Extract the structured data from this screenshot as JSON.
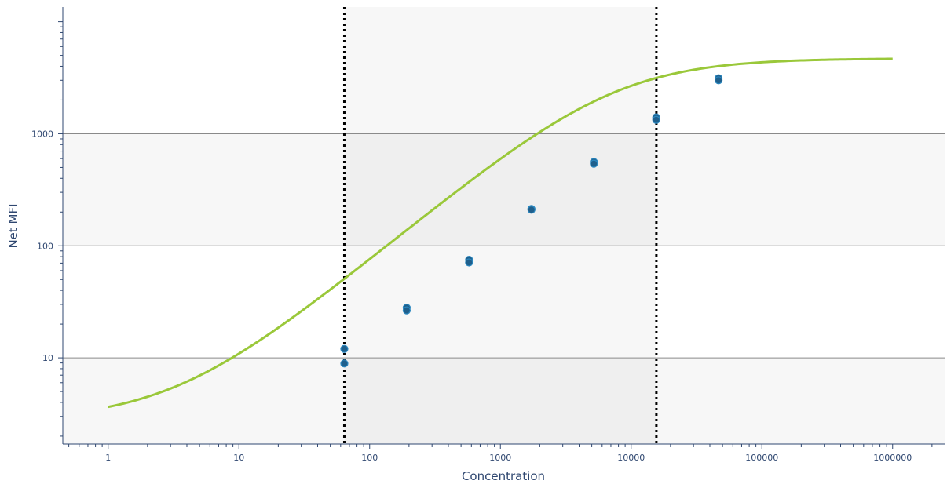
{
  "chart_data": {
    "type": "scatter",
    "xlabel": "Concentration",
    "ylabel": "Net MFI",
    "x_scale": "log",
    "y_scale": "log",
    "xlim": [
      0.45,
      2500000
    ],
    "ylim": [
      1.7,
      13500
    ],
    "x_ticks": [
      1,
      10,
      100,
      1000,
      10000,
      100000,
      1000000
    ],
    "x_tick_labels": [
      "1",
      "10",
      "100",
      "1000",
      "10000",
      "100000",
      "1000000"
    ],
    "y_ticks": [
      10,
      100,
      1000
    ],
    "y_tick_labels": [
      "10",
      "100",
      "1000"
    ],
    "grid": "horizontal at major y ticks",
    "alternating_bands": true,
    "range_limits": {
      "lower": 64,
      "upper": 15600,
      "style": "dotted vertical lines, shaded region between"
    },
    "series": [
      {
        "kind": "points",
        "color": "#1f5f8c",
        "points": [
          {
            "x": 64,
            "y": 12.0
          },
          {
            "x": 64,
            "y": 8.9
          },
          {
            "x": 192,
            "y": 28.0
          },
          {
            "x": 192,
            "y": 26.5
          },
          {
            "x": 576,
            "y": 75
          },
          {
            "x": 576,
            "y": 71
          },
          {
            "x": 1728,
            "y": 213
          },
          {
            "x": 1728,
            "y": 210
          },
          {
            "x": 5184,
            "y": 560
          },
          {
            "x": 5184,
            "y": 540
          },
          {
            "x": 15552,
            "y": 1400
          },
          {
            "x": 15552,
            "y": 1330
          },
          {
            "x": 46656,
            "y": 3130
          },
          {
            "x": 46656,
            "y": 3000
          }
        ]
      },
      {
        "kind": "curve",
        "fit": "4PL",
        "color": "#9ac83a",
        "params": {
          "bottom": 2.75,
          "top": 4700,
          "ec50": 7500,
          "hill": 0.96
        },
        "x_range": [
          1,
          1000000
        ]
      }
    ]
  }
}
